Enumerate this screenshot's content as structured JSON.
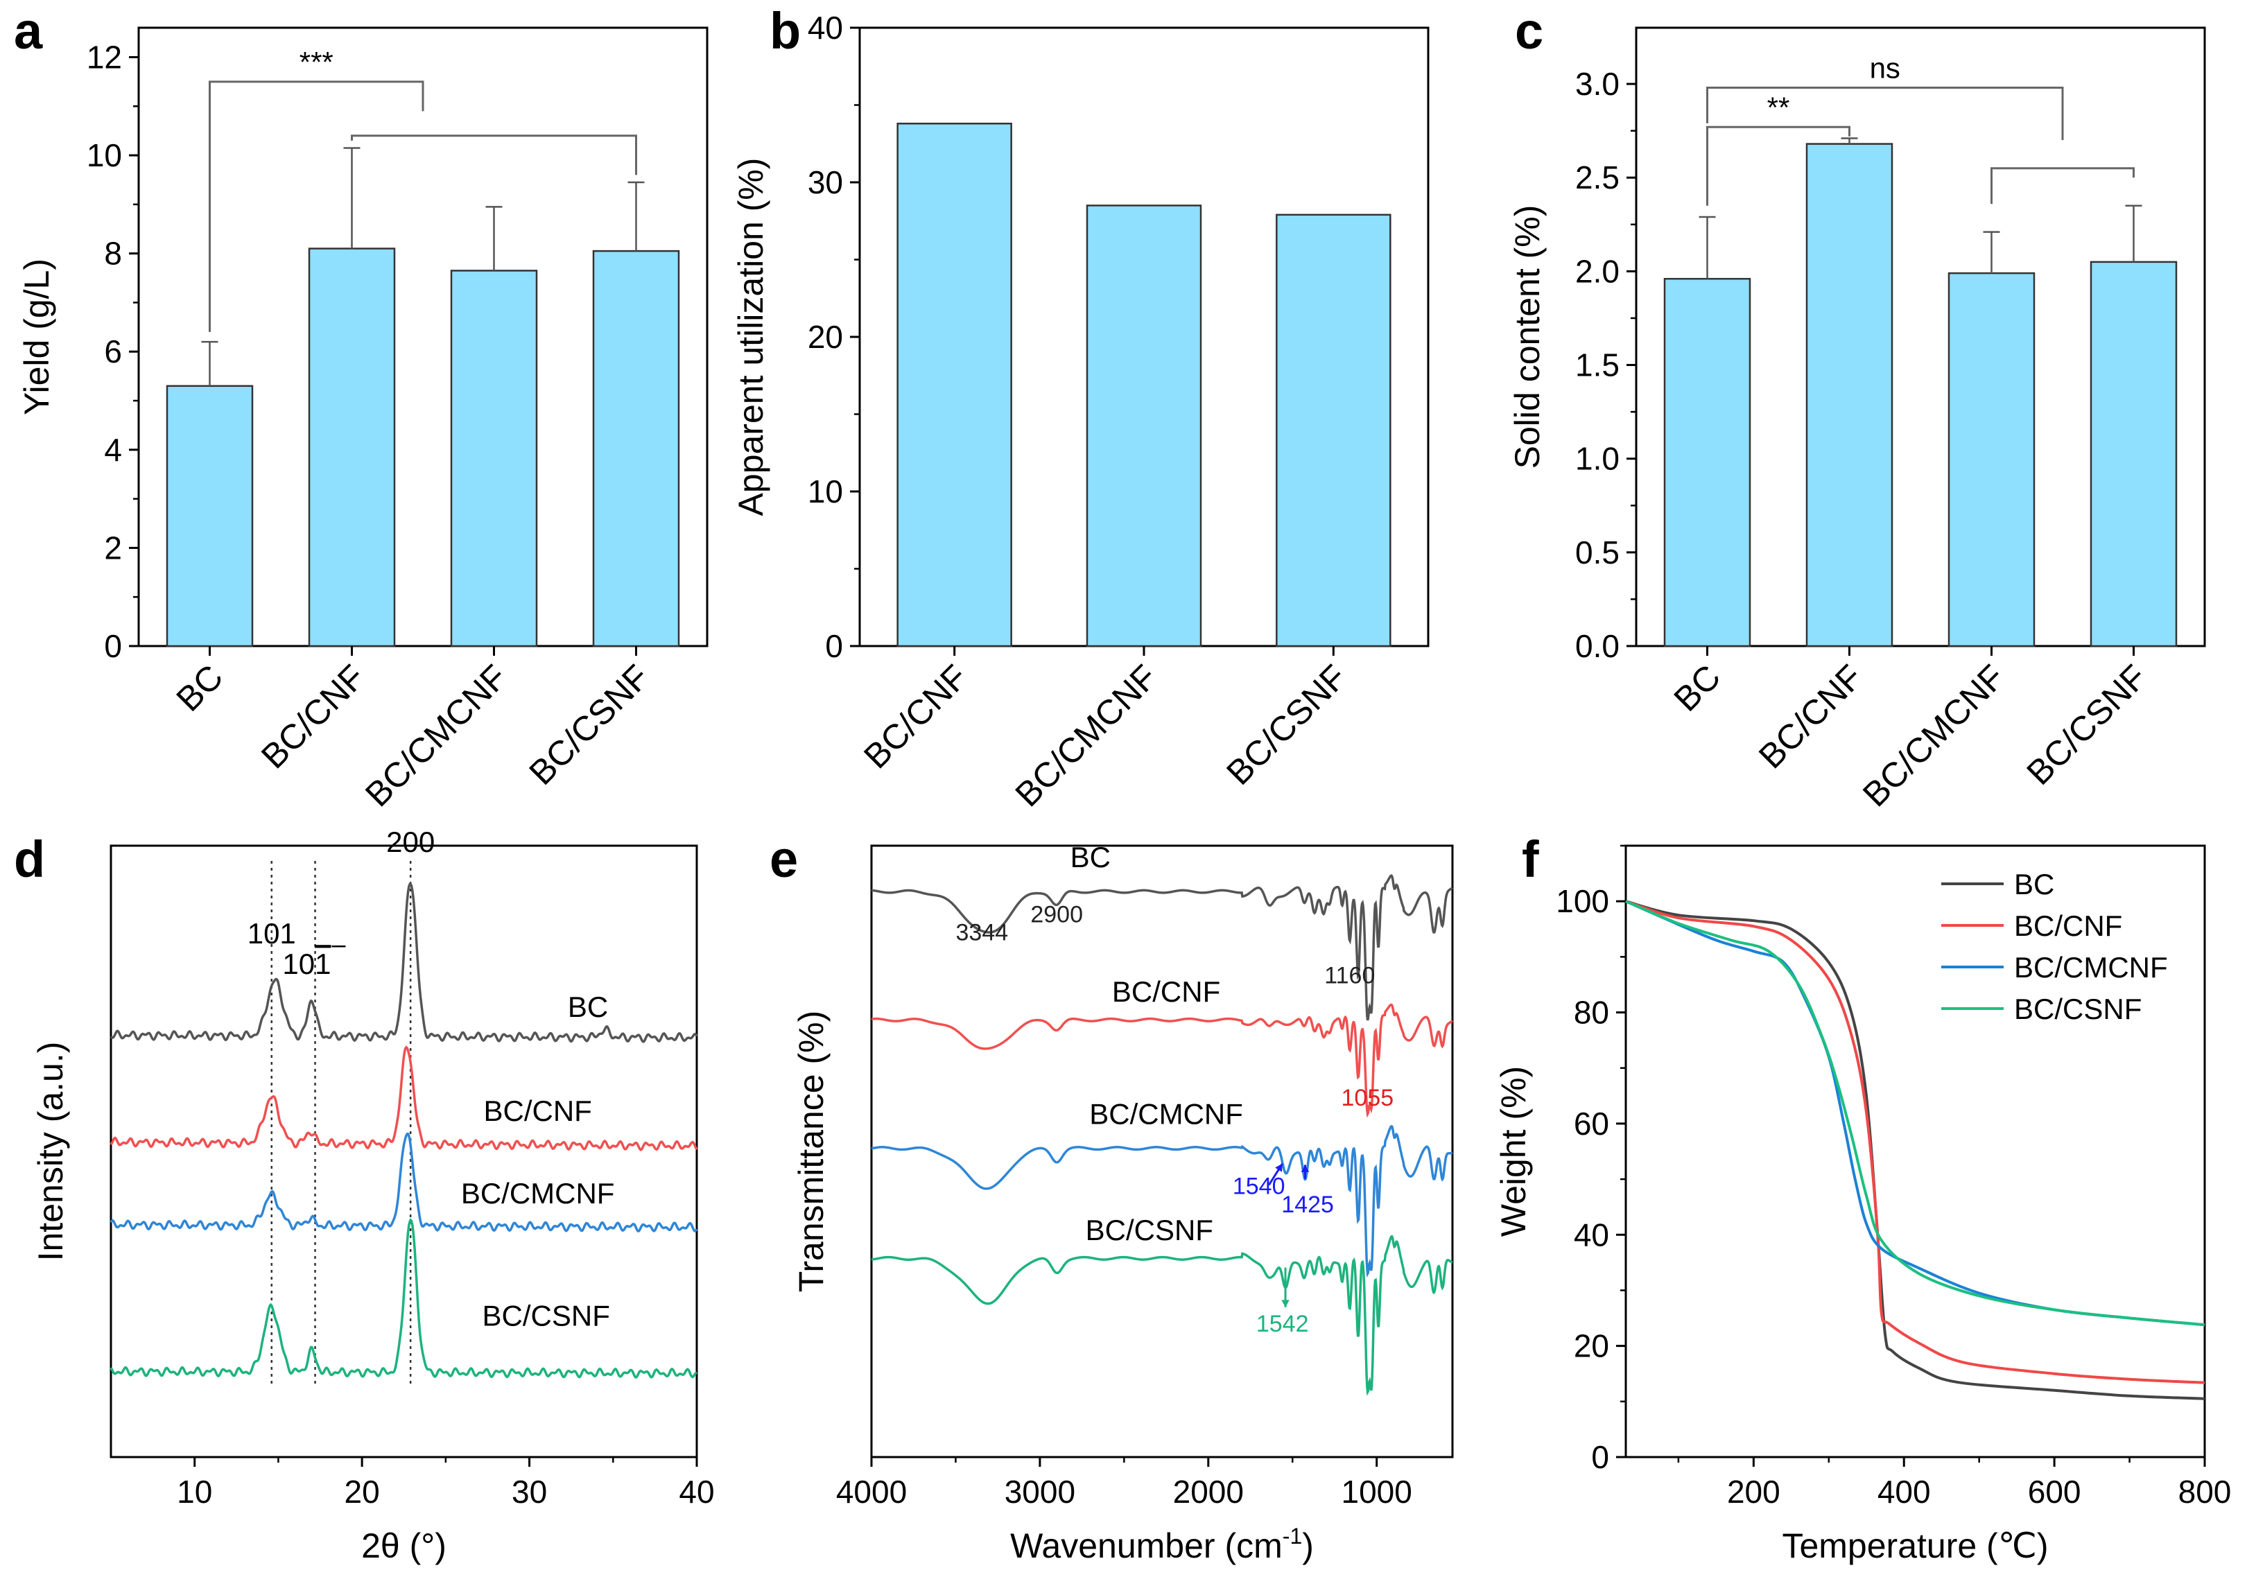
{
  "chart_data": [
    {
      "id": "a",
      "panel_label": "a",
      "type": "bar",
      "categories": [
        "BC",
        "BC/CNF",
        "BC/CMCNF",
        "BC/CSNF"
      ],
      "values": [
        5.3,
        8.1,
        7.65,
        8.05
      ],
      "errors": [
        0.9,
        2.05,
        1.3,
        1.4
      ],
      "ylabel": "Yield (g/L)",
      "xlabel": "",
      "ylim": [
        0,
        12.6
      ],
      "yticks": [
        0,
        2,
        4,
        6,
        8,
        10,
        12
      ],
      "tick_decimals": 0,
      "bar_color": "#8fdfff",
      "brackets": [
        {
          "kind": "group",
          "from": 1,
          "to": 3,
          "y": 10.4
        },
        {
          "kind": "simple",
          "from": 0,
          "to": 1.5,
          "y": 11.5,
          "yFrom": 6.4,
          "yTo": 10.9,
          "label": "***"
        }
      ]
    },
    {
      "id": "b",
      "panel_label": "b",
      "type": "bar",
      "categories": [
        "BC/CNF",
        "BC/CMCNF",
        "BC/CSNF"
      ],
      "values": [
        33.8,
        28.5,
        27.9
      ],
      "errors": [],
      "ylabel": "Apparent utilization (%)",
      "xlabel": "",
      "ylim": [
        0,
        40
      ],
      "yticks": [
        0,
        10,
        20,
        30,
        40
      ],
      "tick_decimals": 0,
      "bar_color": "#8fdfff",
      "brackets": []
    },
    {
      "id": "c",
      "panel_label": "c",
      "type": "bar",
      "categories": [
        "BC",
        "BC/CNF",
        "BC/CMCNF",
        "BC/CSNF"
      ],
      "values": [
        1.96,
        2.68,
        1.99,
        2.05
      ],
      "errors": [
        0.33,
        0.03,
        0.22,
        0.3
      ],
      "ylabel": "Solid content (%)",
      "xlabel": "",
      "ylim": [
        0,
        3.3
      ],
      "yticks": [
        0.0,
        0.5,
        1.0,
        1.5,
        2.0,
        2.5,
        3.0
      ],
      "tick_decimals": 1,
      "bar_color": "#8fdfff",
      "brackets": [
        {
          "kind": "group",
          "from": 2,
          "to": 3,
          "y": 2.55
        },
        {
          "kind": "simple",
          "from": 0,
          "to": 1,
          "y": 2.77,
          "yFrom": 2.35,
          "yTo": 2.72,
          "label": "**"
        },
        {
          "kind": "simple",
          "from": 0,
          "to": 2.5,
          "y": 2.98,
          "yFrom": 2.79,
          "yTo": 2.7,
          "label": "ns"
        }
      ]
    },
    {
      "id": "d",
      "panel_label": "d",
      "type": "line",
      "xlabel": "2θ (°)",
      "ylabel": "Intensity (a.u.)",
      "xlim": [
        5,
        40
      ],
      "xticks": [
        10,
        20,
        30,
        40
      ],
      "ylim": [
        0,
        1
      ],
      "peak_lines": [
        14.6,
        17.2,
        22.9
      ],
      "annotations": [
        {
          "text": "101",
          "x": 14.6,
          "y": 0.84
        },
        {
          "text": "10",
          "x": 16.7,
          "y": 0.79,
          "overbar_suffix": "1"
        },
        {
          "text": "200",
          "x": 22.9,
          "y": 0.99
        }
      ],
      "series": [
        {
          "name": "BC",
          "label_x": 33.5,
          "label_y": 0.72,
          "color": "#555555",
          "baseline": 0.69,
          "tilt": -0.004,
          "peaks": [
            [
              14.8,
              0.65,
              0.09
            ],
            [
              17.0,
              0.35,
              0.06
            ],
            [
              22.9,
              0.5,
              0.255
            ],
            [
              34.5,
              0.4,
              0.012
            ]
          ]
        },
        {
          "name": "BC/CNF",
          "label_x": 30.5,
          "label_y": 0.55,
          "color": "#f05050",
          "baseline": 0.515,
          "tilt": -0.006,
          "peaks": [
            [
              14.6,
              0.65,
              0.075
            ],
            [
              16.9,
              0.35,
              0.02
            ],
            [
              22.7,
              0.5,
              0.16
            ]
          ]
        },
        {
          "name": "BC/CMCNF",
          "label_x": 30.5,
          "label_y": 0.415,
          "color": "#2f86d6",
          "baseline": 0.38,
          "tilt": -0.004,
          "peaks": [
            [
              14.6,
              0.65,
              0.05
            ],
            [
              16.9,
              0.35,
              0.012
            ],
            [
              22.7,
              0.5,
              0.155
            ]
          ]
        },
        {
          "name": "BC/CSNF",
          "label_x": 31.0,
          "label_y": 0.215,
          "color": "#1db37e",
          "baseline": 0.14,
          "tilt": -0.003,
          "peaks": [
            [
              14.6,
              0.65,
              0.105
            ],
            [
              17.0,
              0.35,
              0.035
            ],
            [
              22.9,
              0.5,
              0.25
            ]
          ]
        }
      ]
    },
    {
      "id": "e",
      "panel_label": "e",
      "type": "line",
      "xlabel": "Wavenumber (cm",
      "xlabel_sup": "-1",
      "xlabel_tail": ")",
      "ylabel": "Transmittance (%)",
      "xlim": [
        4000,
        550
      ],
      "xticks": [
        4000,
        3000,
        2000,
        1000
      ],
      "ylim": [
        0,
        1
      ],
      "annotations": [
        {
          "text": "3344",
          "x": 3344,
          "y": 0.845,
          "color": "#222222"
        },
        {
          "text": "2900",
          "x": 2900,
          "y": 0.875,
          "color": "#222222"
        },
        {
          "text": "1160",
          "x": 1160,
          "y": 0.775,
          "color": "#222222"
        },
        {
          "text": "1055",
          "x": 1055,
          "y": 0.575,
          "color": "#e02020"
        },
        {
          "text": "1540",
          "x": 1700,
          "y": 0.43,
          "color": "#1a1aff"
        },
        {
          "text": "1425",
          "x": 1410,
          "y": 0.4,
          "color": "#1a1aff"
        },
        {
          "text": "1542",
          "x": 1560,
          "y": 0.205,
          "color": "#1db37e"
        }
      ],
      "arrows": [
        {
          "x1": 1640,
          "y1": 0.445,
          "x2": 1560,
          "y2": 0.48,
          "color": "#1a1aff"
        },
        {
          "x1": 1425,
          "y1": 0.455,
          "x2": 1425,
          "y2": 0.478,
          "color": "#1a1aff"
        },
        {
          "x1": 1542,
          "y1": 0.31,
          "x2": 1542,
          "y2": 0.245,
          "color": "#1db37e"
        }
      ],
      "series": [
        {
          "name": "BC",
          "label_x": 2700,
          "label_y": 0.965,
          "color": "#555555",
          "baseline": 0.925,
          "scale": 1.0,
          "fp": 1
        },
        {
          "name": "BC/CNF",
          "label_x": 2250,
          "label_y": 0.745,
          "color": "#f05050",
          "baseline": 0.715,
          "scale": 0.7,
          "fp": 2
        },
        {
          "name": "BC/CMCNF",
          "label_x": 2250,
          "label_y": 0.545,
          "color": "#2f86d6",
          "baseline": 0.505,
          "scale": 0.95,
          "fp": 3
        },
        {
          "name": "BC/CSNF",
          "label_x": 2350,
          "label_y": 0.355,
          "color": "#1db37e",
          "baseline": 0.325,
          "scale": 1.05,
          "fp": 4
        }
      ]
    },
    {
      "id": "f",
      "panel_label": "f",
      "type": "line",
      "xlabel": "Temperature (℃)",
      "ylabel": "Weight (%)",
      "xlim": [
        30,
        800
      ],
      "xticks": [
        200,
        400,
        600,
        800
      ],
      "ylim": [
        0,
        110
      ],
      "yticks": [
        0,
        20,
        40,
        60,
        80,
        100
      ],
      "legend": "top-right",
      "series": [
        {
          "name": "BC",
          "color": "#444444",
          "points": [
            [
              30,
              100
            ],
            [
              100,
              97.5
            ],
            [
              200,
              96.5
            ],
            [
              250,
              95
            ],
            [
              300,
              89
            ],
            [
              330,
              80
            ],
            [
              350,
              65
            ],
            [
              365,
              40
            ],
            [
              375,
              22
            ],
            [
              385,
              19
            ],
            [
              420,
              16
            ],
            [
              470,
              13.5
            ],
            [
              600,
              12
            ],
            [
              700,
              11
            ],
            [
              800,
              10.5
            ]
          ]
        },
        {
          "name": "BC/CNF",
          "color": "#f04848",
          "points": [
            [
              30,
              100
            ],
            [
              100,
              97
            ],
            [
              200,
              95.5
            ],
            [
              250,
              93
            ],
            [
              300,
              86
            ],
            [
              330,
              76
            ],
            [
              350,
              62
            ],
            [
              365,
              40
            ],
            [
              370,
              26
            ],
            [
              380,
              24
            ],
            [
              420,
              20.5
            ],
            [
              480,
              17
            ],
            [
              600,
              15
            ],
            [
              700,
              14
            ],
            [
              800,
              13.4
            ]
          ]
        },
        {
          "name": "BC/CMCNF",
          "color": "#1a82d6",
          "points": [
            [
              30,
              100
            ],
            [
              80,
              97
            ],
            [
              150,
              93
            ],
            [
              200,
              91
            ],
            [
              240,
              89
            ],
            [
              270,
              82
            ],
            [
              300,
              72
            ],
            [
              320,
              60
            ],
            [
              335,
              50
            ],
            [
              350,
              42
            ],
            [
              370,
              37.5
            ],
            [
              420,
              34
            ],
            [
              500,
              29.5
            ],
            [
              600,
              26.5
            ],
            [
              700,
              25
            ],
            [
              800,
              23.8
            ]
          ]
        },
        {
          "name": "BC/CSNF",
          "color": "#1dbf80",
          "points": [
            [
              30,
              100
            ],
            [
              100,
              96
            ],
            [
              170,
              93
            ],
            [
              220,
              91
            ],
            [
              260,
              85
            ],
            [
              290,
              76
            ],
            [
              310,
              68
            ],
            [
              330,
              58
            ],
            [
              350,
              47
            ],
            [
              370,
              39
            ],
            [
              420,
              33
            ],
            [
              500,
              29
            ],
            [
              600,
              26.5
            ],
            [
              700,
              25
            ],
            [
              800,
              23.8
            ]
          ]
        }
      ]
    }
  ]
}
